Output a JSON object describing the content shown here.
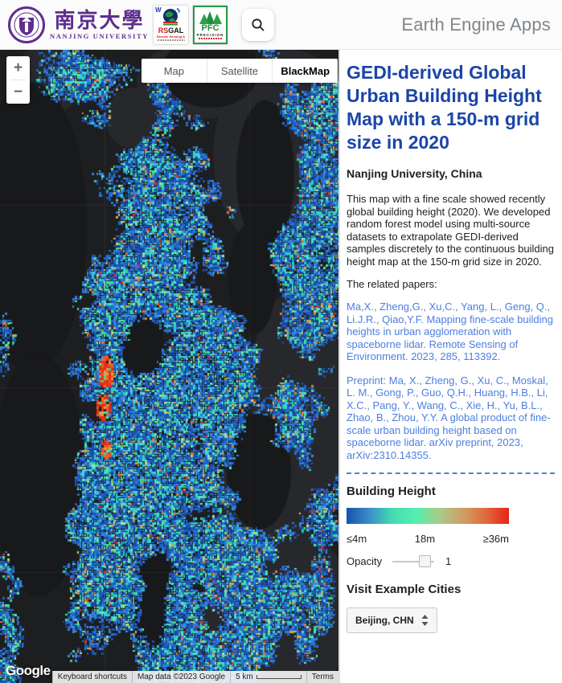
{
  "header": {
    "brand": "Earth Engine Apps",
    "search_icon": "search-icon",
    "logos": {
      "nju_cn": "南京大學",
      "nju_en": "NANJING UNIVERSITY",
      "rsgal_w": "W",
      "rsgal_rs": "RS",
      "rsgal_gal": "GAL",
      "rsgal_sub": "Remote Sensing &",
      "pfc_name": "PFC",
      "pfc_sub": "PRECISION"
    }
  },
  "map": {
    "type_controls": [
      "Map",
      "Satellite",
      "BlackMap"
    ],
    "selected_type": "BlackMap",
    "zoom_in": "+",
    "zoom_out": "−",
    "google_logo": "Google",
    "attribution": {
      "keyboard_shortcuts": "Keyboard shortcuts",
      "map_data": "Map data ©2023 Google",
      "scale_label": "5 km",
      "terms": "Terms"
    }
  },
  "panel": {
    "title": "GEDI-derived Global Urban Building Height Map with a 150-m grid size in 2020",
    "subtitle": "Nanjing University, China",
    "description": "This map with a fine scale showed recently global building height (2020). We developed random forest model using multi-source datasets to extrapolate GEDI-derived samples discretely to the continuous building height map at the 150-m grid size in 2020.",
    "related_papers_label": "The related papers:",
    "papers": [
      {
        "text": "Ma,X., Zheng,G., Xu,C., Yang, L., Geng, Q., Li.J.R., Qiao,Y.F. Mapping fine-scale building heights in urban agglomeration with spaceborne lidar. Remote Sensing of Environment. 2023, 285, 113392."
      },
      {
        "text": "Preprint: Ma, X., Zheng, G., Xu, C., Moskal, L. M., Gong, P., Guo, Q.H., Huang, H.B., Li, X.C., Pang, Y., Wang, C., Xie, H., Yu, B.L., Zhao, B., Zhou, Y.Y. A global product of fine-scale urban building height based on spaceborne lidar. arXiv preprint, 2023, arXiv:2310.14355."
      }
    ],
    "legend": {
      "heading": "Building Height",
      "min_label": "≤4m",
      "mid_label": "18m",
      "max_label": "≥36m",
      "gradient_colors": [
        "#1553af",
        "#3b8fc6",
        "#45ddb2",
        "#55efae",
        "#a9cb88",
        "#cf9f69",
        "#e06a3a",
        "#e92319"
      ]
    },
    "opacity": {
      "label": "Opacity",
      "value": "1"
    },
    "cities": {
      "heading": "Visit Example Cities",
      "selected": "Beijing, CHN"
    }
  },
  "colors": {
    "title_blue": "#1b45a8",
    "link_blue": "#4d7ee0",
    "map_bg": "#1d1e20"
  }
}
